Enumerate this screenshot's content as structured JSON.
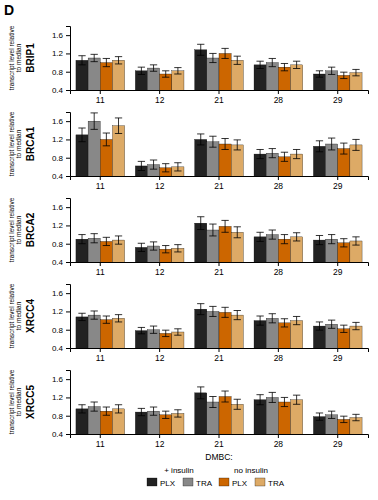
{
  "chart_data": [
    {
      "type": "bar",
      "title": "D",
      "ylabel": "BRIP1",
      "categories": [
        "11",
        "12",
        "21",
        "28",
        "29"
      ],
      "series": [
        {
          "name": "PLX",
          "color": "#222222",
          "values": [
            1.05,
            0.82,
            1.28,
            0.95,
            0.75
          ],
          "errors": [
            0.1,
            0.08,
            0.12,
            0.08,
            0.07
          ]
        },
        {
          "name": "TRA",
          "color": "#888888",
          "values": [
            1.1,
            0.88,
            1.1,
            1.0,
            0.82
          ],
          "errors": [
            0.08,
            0.07,
            0.1,
            0.09,
            0.08
          ]
        },
        {
          "name": "PLX",
          "color": "#cc6600",
          "values": [
            1.0,
            0.75,
            1.2,
            0.9,
            0.72
          ],
          "errors": [
            0.09,
            0.07,
            0.11,
            0.08,
            0.07
          ]
        },
        {
          "name": "TRA",
          "color": "#ddaa66",
          "values": [
            1.05,
            0.82,
            1.05,
            0.95,
            0.78
          ],
          "errors": [
            0.08,
            0.07,
            0.09,
            0.08,
            0.07
          ]
        }
      ],
      "ylim": [
        0.4,
        1.8
      ],
      "yticks": [
        0.4,
        0.8,
        1.2,
        1.6
      ],
      "grid": false,
      "annotations": [
        "transcript level relative\nto median"
      ]
    },
    {
      "type": "bar",
      "ylabel": "BRCA1",
      "categories": [
        "11",
        "12",
        "21",
        "28",
        "29"
      ],
      "series": [
        {
          "name": "PLX",
          "color": "#222222",
          "values": [
            1.3,
            0.62,
            1.2,
            0.88,
            1.05
          ],
          "errors": [
            0.15,
            0.1,
            0.12,
            0.1,
            0.12
          ]
        },
        {
          "name": "TRA",
          "color": "#888888",
          "values": [
            1.6,
            0.65,
            1.15,
            0.9,
            1.1
          ],
          "errors": [
            0.18,
            0.1,
            0.12,
            0.1,
            0.13
          ]
        },
        {
          "name": "PLX",
          "color": "#cc6600",
          "values": [
            1.2,
            0.58,
            1.1,
            0.82,
            1.0
          ],
          "errors": [
            0.14,
            0.09,
            0.12,
            0.1,
            0.12
          ]
        },
        {
          "name": "TRA",
          "color": "#ddaa66",
          "values": [
            1.5,
            0.6,
            1.08,
            0.88,
            1.08
          ],
          "errors": [
            0.17,
            0.09,
            0.11,
            0.1,
            0.12
          ]
        }
      ],
      "ylim": [
        0.4,
        1.8
      ],
      "yticks": [
        0.4,
        0.8,
        1.2,
        1.6
      ],
      "grid": false,
      "annotations": [
        "transcript level relative\nto median"
      ]
    },
    {
      "type": "bar",
      "ylabel": "BRCA2",
      "categories": [
        "11",
        "12",
        "21",
        "28",
        "29"
      ],
      "series": [
        {
          "name": "PLX",
          "color": "#222222",
          "values": [
            0.9,
            0.72,
            1.25,
            0.95,
            0.88
          ],
          "errors": [
            0.1,
            0.09,
            0.14,
            0.1,
            0.1
          ]
        },
        {
          "name": "TRA",
          "color": "#888888",
          "values": [
            0.92,
            0.75,
            1.1,
            1.0,
            0.9
          ],
          "errors": [
            0.1,
            0.09,
            0.13,
            0.1,
            0.1
          ]
        },
        {
          "name": "PLX",
          "color": "#cc6600",
          "values": [
            0.85,
            0.68,
            1.18,
            0.9,
            0.82
          ],
          "errors": [
            0.09,
            0.08,
            0.13,
            0.1,
            0.09
          ]
        },
        {
          "name": "TRA",
          "color": "#ddaa66",
          "values": [
            0.88,
            0.7,
            1.05,
            0.95,
            0.86
          ],
          "errors": [
            0.09,
            0.08,
            0.12,
            0.09,
            0.09
          ]
        }
      ],
      "ylim": [
        0.4,
        1.8
      ],
      "yticks": [
        0.4,
        0.8,
        1.2,
        1.6
      ],
      "grid": false,
      "annotations": [
        "transcript level relative\nto median"
      ]
    },
    {
      "type": "bar",
      "ylabel": "XRCC4",
      "categories": [
        "11",
        "12",
        "21",
        "28",
        "29"
      ],
      "series": [
        {
          "name": "PLX",
          "color": "#222222",
          "values": [
            1.08,
            0.78,
            1.25,
            1.0,
            0.88
          ],
          "errors": [
            0.08,
            0.07,
            0.12,
            0.1,
            0.09
          ]
        },
        {
          "name": "TRA",
          "color": "#888888",
          "values": [
            1.12,
            0.8,
            1.2,
            1.05,
            0.92
          ],
          "errors": [
            0.09,
            0.08,
            0.11,
            0.1,
            0.09
          ]
        },
        {
          "name": "PLX",
          "color": "#cc6600",
          "values": [
            1.02,
            0.72,
            1.18,
            0.95,
            0.82
          ],
          "errors": [
            0.08,
            0.07,
            0.11,
            0.09,
            0.08
          ]
        },
        {
          "name": "TRA",
          "color": "#ddaa66",
          "values": [
            1.05,
            0.75,
            1.12,
            1.0,
            0.88
          ],
          "errors": [
            0.08,
            0.07,
            0.1,
            0.09,
            0.08
          ]
        }
      ],
      "ylim": [
        0.4,
        1.8
      ],
      "yticks": [
        0.4,
        0.8,
        1.2,
        1.6
      ],
      "grid": false,
      "annotations": [
        "transcript level relative\nto median"
      ]
    },
    {
      "type": "bar",
      "ylabel": "XRCC5",
      "xlabel": "DMBC:",
      "categories": [
        "11",
        "12",
        "21",
        "28",
        "29"
      ],
      "series": [
        {
          "name": "PLX",
          "color": "#222222",
          "values": [
            0.95,
            0.88,
            1.3,
            1.15,
            0.78
          ],
          "errors": [
            0.09,
            0.08,
            0.13,
            0.11,
            0.08
          ]
        },
        {
          "name": "TRA",
          "color": "#888888",
          "values": [
            1.0,
            0.9,
            1.1,
            1.2,
            0.82
          ],
          "errors": [
            0.1,
            0.09,
            0.12,
            0.11,
            0.08
          ]
        },
        {
          "name": "PLX",
          "color": "#cc6600",
          "values": [
            0.9,
            0.82,
            1.22,
            1.1,
            0.72
          ],
          "errors": [
            0.09,
            0.08,
            0.12,
            0.1,
            0.07
          ]
        },
        {
          "name": "TRA",
          "color": "#ddaa66",
          "values": [
            0.95,
            0.85,
            1.05,
            1.15,
            0.76
          ],
          "errors": [
            0.09,
            0.08,
            0.11,
            0.1,
            0.07
          ]
        }
      ],
      "ylim": [
        0.4,
        1.8
      ],
      "yticks": [
        0.4,
        0.8,
        1.2,
        1.6
      ],
      "grid": false,
      "legend": "bottom",
      "annotations": [
        "transcript level relative\nto median",
        "+ insulin",
        "no insulin"
      ]
    }
  ]
}
